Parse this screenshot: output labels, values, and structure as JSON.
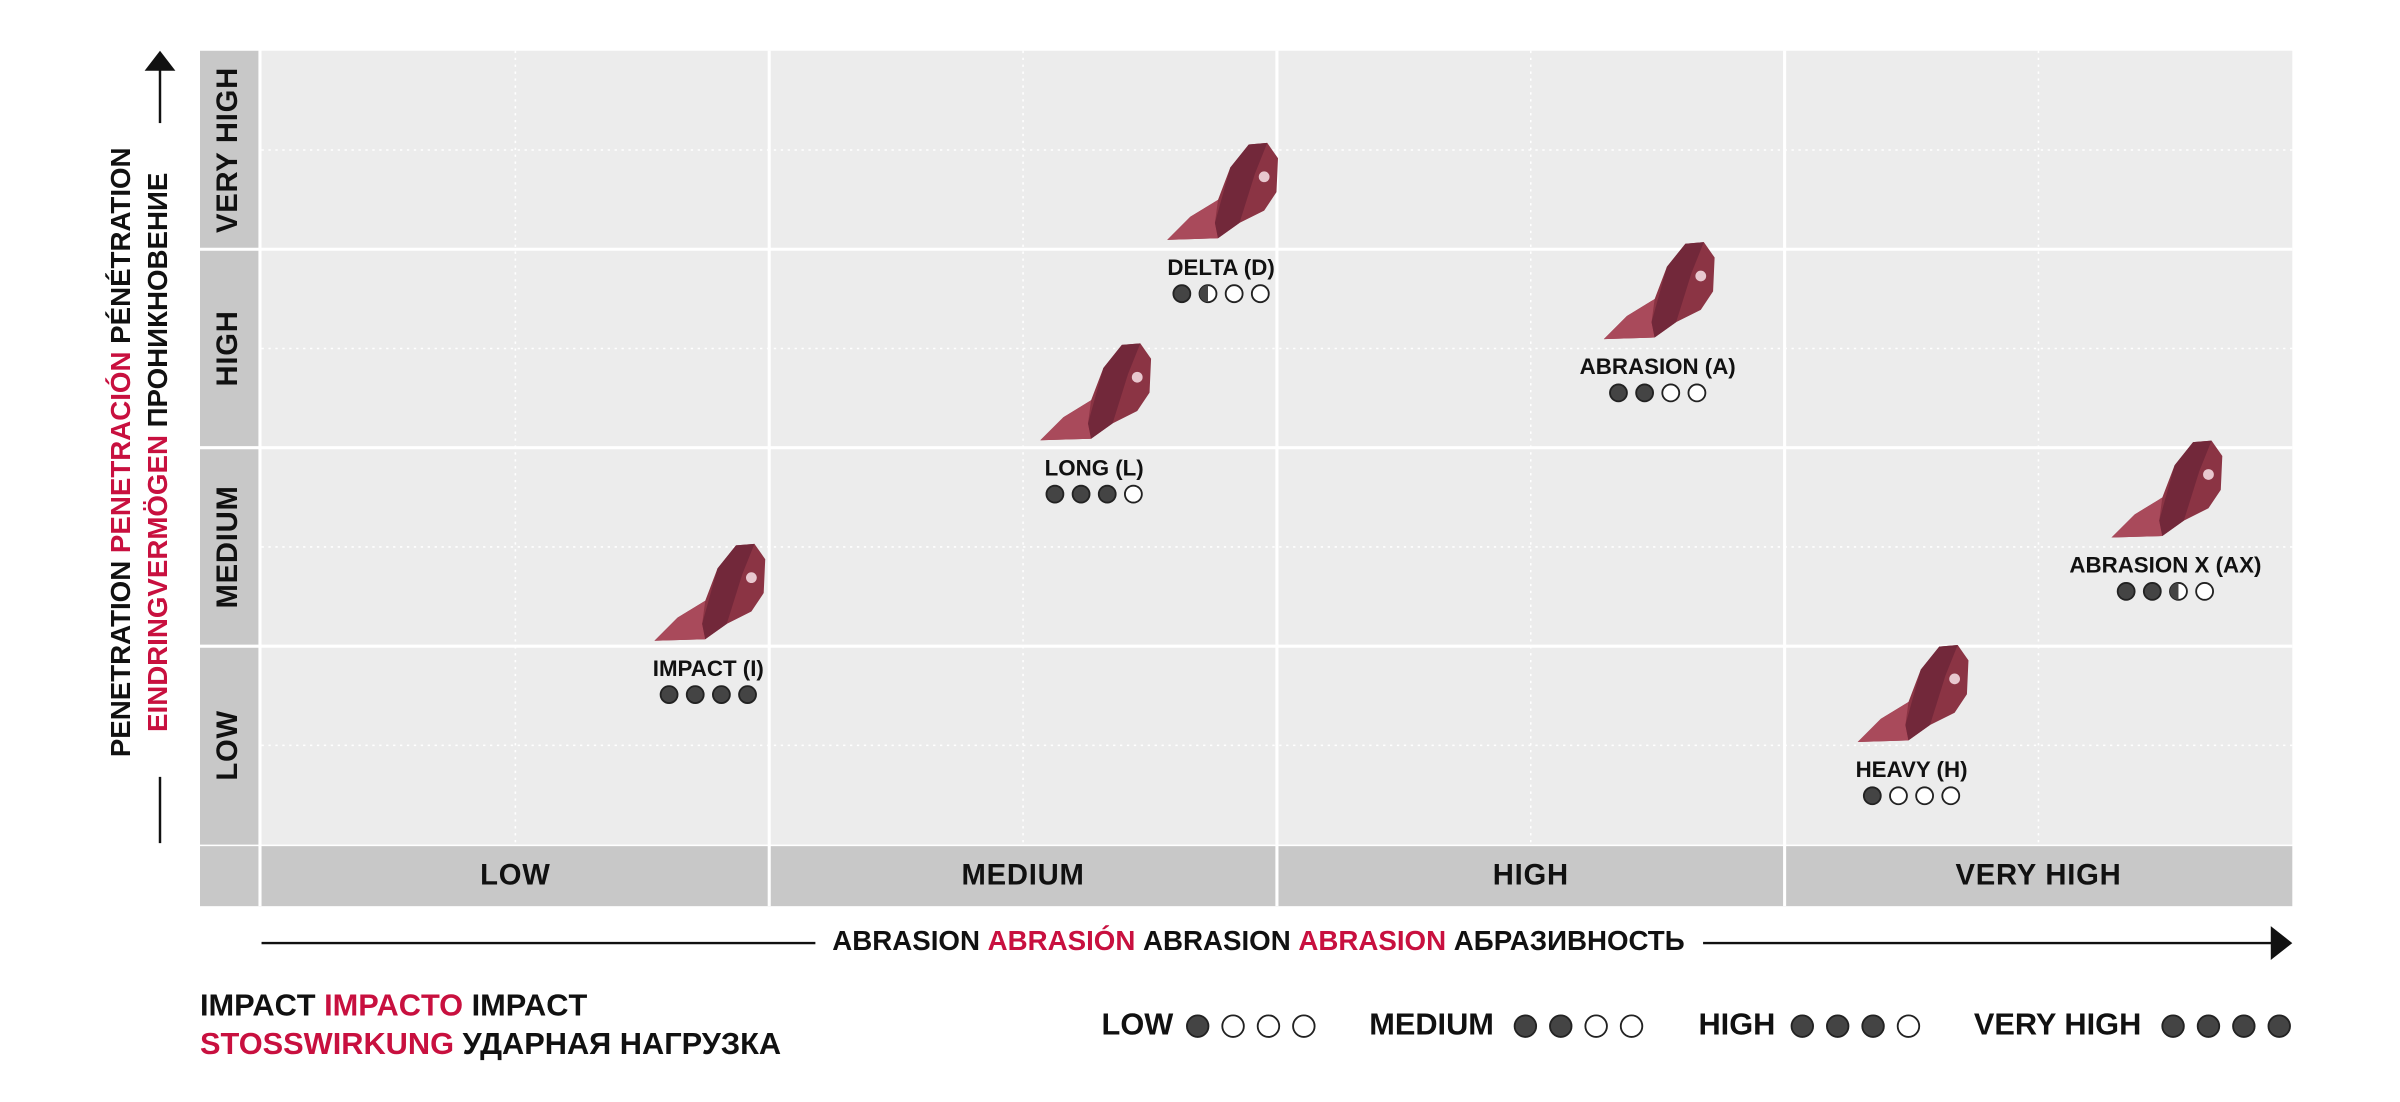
{
  "x_axis": {
    "title": [
      "ABRASION",
      "ABRASIÓN",
      "ABRASION",
      "ABRASION",
      "АБРАЗИВНОСТЬ"
    ],
    "categories": [
      "LOW",
      "MEDIUM",
      "HIGH",
      "VERY HIGH"
    ],
    "xlim": [
      0,
      4
    ]
  },
  "y_axis": {
    "title_line_1": [
      "PENETRATION",
      "PENETRACIÓN",
      "PÉNÉTRATION"
    ],
    "title_line_2": [
      "EINDRINGVERMÖGEN",
      "ПРОНИКНОВЕНИЕ"
    ],
    "categories": [
      "LOW",
      "MEDIUM",
      "HIGH",
      "VERY HIGH"
    ],
    "ylim": [
      0,
      4
    ]
  },
  "items": [
    {
      "name": "IMPACT (I)",
      "abrasion": 0.88,
      "penetration": 0.88,
      "impact": 4
    },
    {
      "name": "LONG (L)",
      "abrasion": 1.64,
      "penetration": 1.89,
      "impact": 3
    },
    {
      "name": "DELTA (D)",
      "abrasion": 1.89,
      "penetration": 2.9,
      "impact": 1.5
    },
    {
      "name": "ABRASION (A)",
      "abrasion": 2.75,
      "penetration": 2.4,
      "impact": 2
    },
    {
      "name": "ABRASION X (AX)",
      "abrasion": 3.75,
      "penetration": 1.4,
      "impact": 2.5
    },
    {
      "name": "HEAVY (H)",
      "abrasion": 3.25,
      "penetration": 0.37,
      "impact": 1
    }
  ],
  "legend": {
    "title_line_1": [
      "IMPACT",
      "IMPACTO",
      "IMPACT"
    ],
    "title_line_2": [
      "STOSSWIRKUNG",
      "УДАРНАЯ НАГРУЗКА"
    ],
    "levels": [
      {
        "label": "LOW",
        "value": 1
      },
      {
        "label": "MEDIUM",
        "value": 2
      },
      {
        "label": "HIGH",
        "value": 3
      },
      {
        "label": "VERY HIGH",
        "value": 4
      }
    ]
  }
}
